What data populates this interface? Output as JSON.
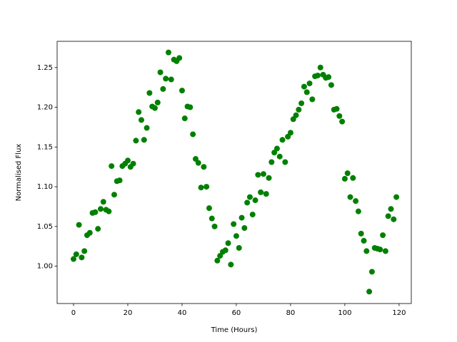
{
  "chart_data": {
    "type": "scatter",
    "x_label": "Time (Hours)",
    "y_label": "Normalised Flux",
    "color": "#008000",
    "x": [
      0,
      1,
      2,
      3,
      4,
      5,
      6,
      7,
      8,
      9,
      10,
      11,
      12,
      13,
      14,
      15,
      16,
      17,
      18,
      19,
      20,
      21,
      22,
      23,
      24,
      25,
      26,
      27,
      28,
      29,
      30,
      31,
      32,
      33,
      34,
      35,
      36,
      37,
      38,
      39,
      40,
      41,
      42,
      43,
      44,
      45,
      46,
      47,
      48,
      49,
      50,
      51,
      52,
      53,
      54,
      55,
      56,
      57,
      58,
      59,
      60,
      61,
      62,
      63,
      64,
      65,
      66,
      67,
      68,
      69,
      70,
      71,
      72,
      73,
      74,
      75,
      76,
      77,
      78,
      79,
      80,
      81,
      82,
      83,
      84,
      85,
      86,
      87,
      88,
      89,
      90,
      91,
      92,
      93,
      94,
      95,
      96,
      97,
      98,
      99,
      100,
      101,
      102,
      103,
      104,
      105,
      106,
      107,
      108,
      109,
      110,
      111,
      112,
      113,
      114,
      115,
      116,
      117,
      118,
      119
    ],
    "values": [
      1.009,
      1.015,
      1.052,
      1.011,
      1.019,
      1.039,
      1.042,
      1.067,
      1.068,
      1.047,
      1.072,
      1.081,
      1.071,
      1.069,
      1.126,
      1.09,
      1.107,
      1.108,
      1.126,
      1.129,
      1.133,
      1.125,
      1.129,
      1.158,
      1.194,
      1.184,
      1.159,
      1.174,
      1.218,
      1.201,
      1.199,
      1.206,
      1.244,
      1.223,
      1.236,
      1.269,
      1.235,
      1.26,
      1.258,
      1.262,
      1.221,
      1.186,
      1.201,
      1.2,
      1.166,
      1.135,
      1.13,
      1.099,
      1.125,
      1.1,
      1.073,
      1.06,
      1.05,
      1.007,
      1.013,
      1.018,
      1.02,
      1.029,
      1.002,
      1.053,
      1.038,
      1.023,
      1.061,
      1.048,
      1.08,
      1.087,
      1.065,
      1.083,
      1.115,
      1.093,
      1.116,
      1.091,
      1.111,
      1.131,
      1.143,
      1.148,
      1.138,
      1.159,
      1.131,
      1.163,
      1.168,
      1.185,
      1.19,
      1.197,
      1.205,
      1.226,
      1.219,
      1.23,
      1.21,
      1.239,
      1.24,
      1.25,
      1.241,
      1.237,
      1.238,
      1.228,
      1.197,
      1.198,
      1.189,
      1.182,
      1.11,
      1.117,
      1.087,
      1.111,
      1.082,
      1.069,
      1.041,
      1.032,
      1.019,
      0.968,
      0.993,
      1.023,
      1.022,
      1.021,
      1.039,
      1.019,
      1.063,
      1.072,
      1.059,
      1.087
    ],
    "xlim": [
      -6.05,
      124.5
    ],
    "ylim": [
      0.953,
      1.283
    ],
    "xticks": [
      0,
      20,
      40,
      60,
      80,
      100,
      120
    ],
    "yticks": [
      {
        "value": 1.0,
        "label": "1.00"
      },
      {
        "value": 1.05,
        "label": "1.05"
      },
      {
        "value": 1.1,
        "label": "1.10"
      },
      {
        "value": 1.15,
        "label": "1.15"
      },
      {
        "value": 1.2,
        "label": "1.20"
      },
      {
        "value": 1.25,
        "label": "1.25"
      }
    ]
  }
}
